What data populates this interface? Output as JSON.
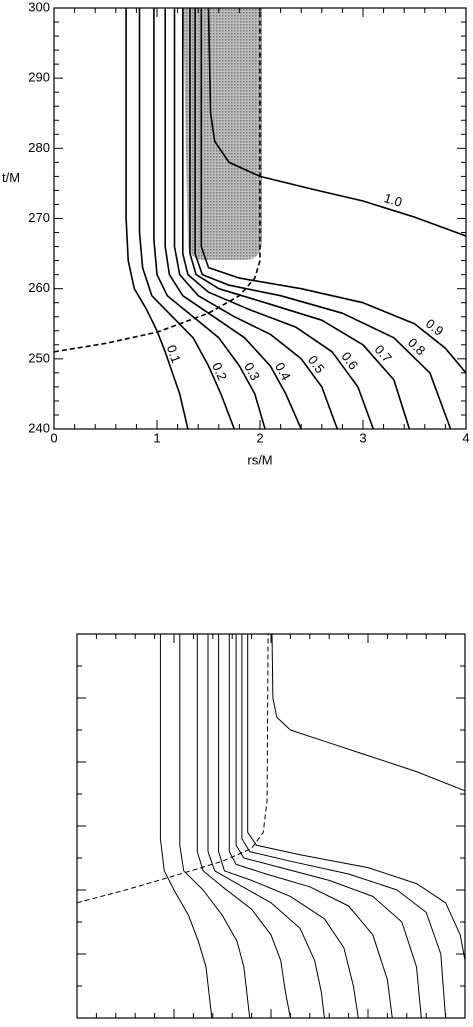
{
  "chart_data": [
    {
      "type": "line",
      "xlabel": "rs/M",
      "ylabel": "t/M",
      "xlim": [
        0,
        4
      ],
      "ylim": [
        240,
        300
      ],
      "xticks": [
        0,
        1,
        2,
        3,
        4
      ],
      "yticks": [
        240,
        250,
        260,
        270,
        280,
        290,
        300
      ],
      "xticks_minor": [
        0.2,
        0.4,
        0.6,
        0.8,
        1.2,
        1.4,
        1.6,
        1.8,
        2.2,
        2.4,
        2.6,
        2.8,
        3.2,
        3.4,
        3.6,
        3.8
      ],
      "yticks_minor": [
        242,
        244,
        246,
        248,
        252,
        254,
        256,
        258,
        262,
        264,
        266,
        268,
        272,
        274,
        276,
        278,
        282,
        284,
        286,
        288,
        292,
        294,
        296,
        298
      ],
      "tick_labels": true,
      "series": [
        {
          "name": "0.1",
          "color": "#000000",
          "x": [
            0.7,
            0.7,
            0.72,
            0.78,
            0.9,
            1.0,
            1.08,
            1.15,
            1.22,
            1.3
          ],
          "values": [
            300,
            270,
            264,
            260,
            257,
            254,
            251,
            248,
            245,
            240
          ]
        },
        {
          "name": "0.2",
          "color": "#000000",
          "x": [
            0.83,
            0.83,
            0.86,
            0.95,
            1.15,
            1.35,
            1.5,
            1.62,
            1.75
          ],
          "values": [
            300,
            268,
            263,
            259,
            256,
            253,
            249,
            245,
            240
          ]
        },
        {
          "name": "0.3",
          "color": "#000000",
          "x": [
            0.97,
            0.97,
            1.0,
            1.1,
            1.35,
            1.6,
            1.8,
            1.95,
            2.05
          ],
          "values": [
            300,
            267,
            262,
            259,
            256,
            253,
            249,
            245,
            240
          ]
        },
        {
          "name": "0.4",
          "color": "#000000",
          "x": [
            1.08,
            1.08,
            1.12,
            1.25,
            1.55,
            1.85,
            2.1,
            2.25,
            2.4
          ],
          "values": [
            300,
            266,
            262,
            259,
            256,
            253,
            249,
            245,
            240
          ]
        },
        {
          "name": "0.5",
          "color": "#000000",
          "x": [
            1.17,
            1.17,
            1.22,
            1.4,
            1.75,
            2.1,
            2.4,
            2.6,
            2.75
          ],
          "values": [
            300,
            266,
            262,
            259,
            256,
            253.5,
            250,
            246,
            240
          ]
        },
        {
          "name": "0.6",
          "color": "#000000",
          "x": [
            1.25,
            1.25,
            1.3,
            1.5,
            1.9,
            2.35,
            2.7,
            2.95,
            3.1
          ],
          "values": [
            300,
            265,
            262,
            259.5,
            257,
            254.5,
            251,
            246,
            240
          ]
        },
        {
          "name": "0.7",
          "color": "#000000",
          "x": [
            1.32,
            1.32,
            1.38,
            1.6,
            2.05,
            2.6,
            3.0,
            3.3,
            3.45
          ],
          "values": [
            300,
            265,
            262,
            260,
            258,
            255.5,
            252,
            247,
            240
          ]
        },
        {
          "name": "0.8",
          "color": "#000000",
          "x": [
            1.37,
            1.37,
            1.44,
            1.7,
            2.2,
            2.8,
            3.3,
            3.65,
            3.85
          ],
          "values": [
            300,
            265,
            262,
            260.5,
            259,
            256.5,
            253,
            248,
            240
          ]
        },
        {
          "name": "0.9",
          "color": "#000000",
          "x": [
            1.43,
            1.43,
            1.5,
            1.8,
            2.4,
            3.0,
            3.5,
            3.8,
            4.0
          ],
          "values": [
            300,
            266,
            263,
            261.5,
            260,
            258,
            255,
            251.5,
            248
          ]
        },
        {
          "name": "1.0",
          "color": "#000000",
          "x": [
            1.5,
            1.52,
            1.56,
            1.7,
            2.0,
            2.5,
            3.0,
            3.5,
            4.0
          ],
          "values": [
            300,
            285,
            281,
            278,
            276,
            274.2,
            272.5,
            270.2,
            267.5
          ]
        },
        {
          "color": "#000000",
          "dashed": true,
          "x": [
            0,
            0.5,
            1.0,
            1.5,
            1.8,
            1.95,
            2.0,
            2.0
          ],
          "values": [
            251,
            252.2,
            253.8,
            256.5,
            259,
            261.5,
            264,
            300
          ]
        }
      ]
    },
    {
      "type": "line",
      "xlim": [
        0,
        4
      ],
      "ylim": [
        240,
        300
      ],
      "xticks": [
        0,
        1,
        2,
        3,
        4
      ],
      "yticks": [
        240,
        250,
        260,
        270,
        280,
        290,
        300
      ],
      "xticks_minor": [
        0.2,
        0.4,
        0.6,
        0.8,
        1.2,
        1.4,
        1.6,
        1.8,
        2.2,
        2.4,
        2.6,
        2.8,
        3.2,
        3.4,
        3.6,
        3.8
      ],
      "yticks_minor": [
        245,
        255,
        265,
        275,
        285,
        295
      ],
      "tick_labels": false,
      "series": [
        {
          "color": "#000000",
          "x": [
            0.86,
            0.86,
            0.9,
            1.0,
            1.15,
            1.25,
            1.33,
            1.36,
            1.39
          ],
          "values": [
            300,
            268,
            263,
            260,
            256,
            252,
            248,
            244,
            240
          ]
        },
        {
          "color": "#000000",
          "x": [
            1.06,
            1.06,
            1.1,
            1.3,
            1.5,
            1.65,
            1.72,
            1.75,
            1.78
          ],
          "values": [
            300,
            267,
            263,
            260,
            256,
            252,
            248,
            244,
            240
          ]
        },
        {
          "color": "#000000",
          "x": [
            1.24,
            1.24,
            1.3,
            1.5,
            1.8,
            2.0,
            2.1,
            2.15,
            2.2
          ],
          "values": [
            300,
            266,
            263,
            260.5,
            257,
            253,
            249,
            244,
            240
          ]
        },
        {
          "color": "#000000",
          "x": [
            1.35,
            1.35,
            1.42,
            1.65,
            2.0,
            2.3,
            2.45,
            2.52,
            2.55
          ],
          "values": [
            300,
            266,
            263,
            261,
            258,
            254,
            249,
            244,
            240
          ]
        },
        {
          "color": "#000000",
          "x": [
            1.46,
            1.46,
            1.52,
            1.8,
            2.2,
            2.55,
            2.75,
            2.85,
            2.9
          ],
          "values": [
            300,
            266,
            263,
            261.5,
            259,
            255.5,
            251,
            245,
            240
          ]
        },
        {
          "color": "#000000",
          "x": [
            1.57,
            1.57,
            1.64,
            1.95,
            2.4,
            2.8,
            3.05,
            3.2,
            3.25
          ],
          "values": [
            300,
            266,
            264,
            262.5,
            260.5,
            257.5,
            253,
            246,
            240
          ]
        },
        {
          "color": "#000000",
          "x": [
            1.64,
            1.64,
            1.72,
            2.1,
            2.6,
            3.05,
            3.35,
            3.5,
            3.55
          ],
          "values": [
            300,
            267,
            265,
            263.5,
            261.5,
            259,
            255,
            248,
            240
          ]
        },
        {
          "color": "#000000",
          "x": [
            1.7,
            1.7,
            1.78,
            2.2,
            2.8,
            3.3,
            3.6,
            3.75,
            3.8
          ],
          "values": [
            300,
            268,
            266,
            264.5,
            262.5,
            260,
            256.5,
            250,
            240
          ]
        },
        {
          "color": "#000000",
          "x": [
            1.76,
            1.76,
            1.85,
            2.3,
            3.0,
            3.5,
            3.8,
            3.95,
            4.0
          ],
          "values": [
            300,
            269,
            267,
            265.5,
            263.5,
            261,
            258,
            253,
            249
          ]
        },
        {
          "color": "#000000",
          "x": [
            2.01,
            2.02,
            2.06,
            2.2,
            2.6,
            3.0,
            3.5,
            4.0
          ],
          "values": [
            300,
            290,
            287,
            285,
            283,
            281,
            278.5,
            275.5
          ]
        },
        {
          "color": "#000000",
          "dashed": true,
          "x": [
            0,
            0.5,
            1.0,
            1.5,
            1.8,
            1.92,
            1.96,
            1.97
          ],
          "values": [
            258,
            260,
            262.2,
            264.5,
            266.5,
            269,
            274,
            300
          ]
        }
      ]
    }
  ]
}
